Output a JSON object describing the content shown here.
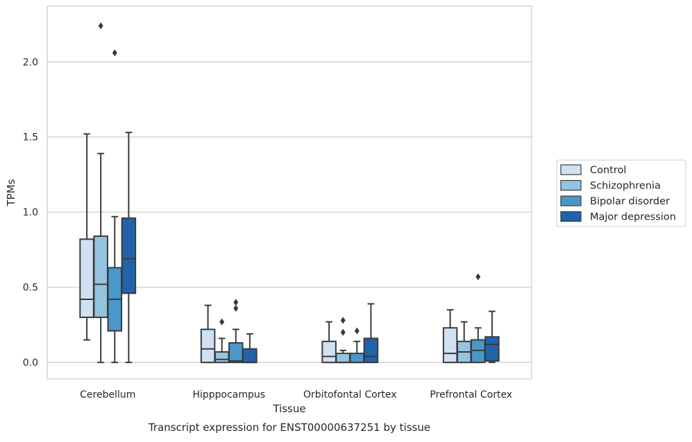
{
  "chart_data": {
    "type": "box",
    "caption": "Transcript expression for ENST00000637251 by tissue",
    "xlabel": "Tissue",
    "ylabel": "TPMs",
    "ylim": [
      -0.11,
      2.37
    ],
    "yticks": [
      0.0,
      0.5,
      1.0,
      1.5,
      2.0
    ],
    "ytick_labels": [
      "0.0",
      "0.5",
      "1.0",
      "1.5",
      "2.0"
    ],
    "grid": "horizontal",
    "legend_position": "right",
    "categories": [
      "Cerebellum",
      "Hipppocampus",
      "Orbitofontal Cortex",
      "Prefrontal Cortex"
    ],
    "series": [
      {
        "name": "Control",
        "color": "#d0e1f2",
        "boxes": [
          {
            "whisker_low": 0.15,
            "q1": 0.3,
            "median": 0.42,
            "q3": 0.82,
            "whisker_high": 1.52,
            "outliers": []
          },
          {
            "whisker_low": 0.0,
            "q1": 0.0,
            "median": 0.09,
            "q3": 0.22,
            "whisker_high": 0.38,
            "outliers": []
          },
          {
            "whisker_low": 0.0,
            "q1": 0.0,
            "median": 0.04,
            "q3": 0.14,
            "whisker_high": 0.27,
            "outliers": []
          },
          {
            "whisker_low": 0.0,
            "q1": 0.0,
            "median": 0.06,
            "q3": 0.23,
            "whisker_high": 0.35,
            "outliers": []
          }
        ]
      },
      {
        "name": "Schizophrenia",
        "color": "#94c4df",
        "boxes": [
          {
            "whisker_low": 0.0,
            "q1": 0.3,
            "median": 0.52,
            "q3": 0.84,
            "whisker_high": 1.39,
            "outliers": [
              2.24
            ]
          },
          {
            "whisker_low": 0.0,
            "q1": 0.0,
            "median": 0.02,
            "q3": 0.07,
            "whisker_high": 0.16,
            "outliers": [
              0.27
            ]
          },
          {
            "whisker_low": 0.0,
            "q1": 0.0,
            "median": 0.0,
            "q3": 0.06,
            "whisker_high": 0.08,
            "outliers": [
              0.2,
              0.28
            ]
          },
          {
            "whisker_low": 0.0,
            "q1": 0.0,
            "median": 0.07,
            "q3": 0.14,
            "whisker_high": 0.27,
            "outliers": []
          }
        ]
      },
      {
        "name": "Bipolar disorder",
        "color": "#4a98c9",
        "boxes": [
          {
            "whisker_low": 0.0,
            "q1": 0.21,
            "median": 0.42,
            "q3": 0.63,
            "whisker_high": 0.97,
            "outliers": [
              2.06
            ]
          },
          {
            "whisker_low": 0.0,
            "q1": 0.0,
            "median": 0.01,
            "q3": 0.13,
            "whisker_high": 0.22,
            "outliers": [
              0.36,
              0.4
            ]
          },
          {
            "whisker_low": 0.0,
            "q1": 0.0,
            "median": 0.0,
            "q3": 0.06,
            "whisker_high": 0.14,
            "outliers": [
              0.21
            ]
          },
          {
            "whisker_low": 0.0,
            "q1": 0.0,
            "median": 0.08,
            "q3": 0.15,
            "whisker_high": 0.23,
            "outliers": [
              0.57
            ]
          }
        ]
      },
      {
        "name": "Major depression",
        "color": "#2163aa",
        "boxes": [
          {
            "whisker_low": 0.0,
            "q1": 0.46,
            "median": 0.69,
            "q3": 0.96,
            "whisker_high": 1.53,
            "outliers": []
          },
          {
            "whisker_low": 0.0,
            "q1": 0.0,
            "median": 0.0,
            "q3": 0.09,
            "whisker_high": 0.19,
            "outliers": []
          },
          {
            "whisker_low": 0.0,
            "q1": 0.0,
            "median": 0.04,
            "q3": 0.16,
            "whisker_high": 0.39,
            "outliers": []
          },
          {
            "whisker_low": 0.0,
            "q1": 0.01,
            "median": 0.12,
            "q3": 0.17,
            "whisker_high": 0.34,
            "outliers": []
          }
        ]
      }
    ]
  }
}
